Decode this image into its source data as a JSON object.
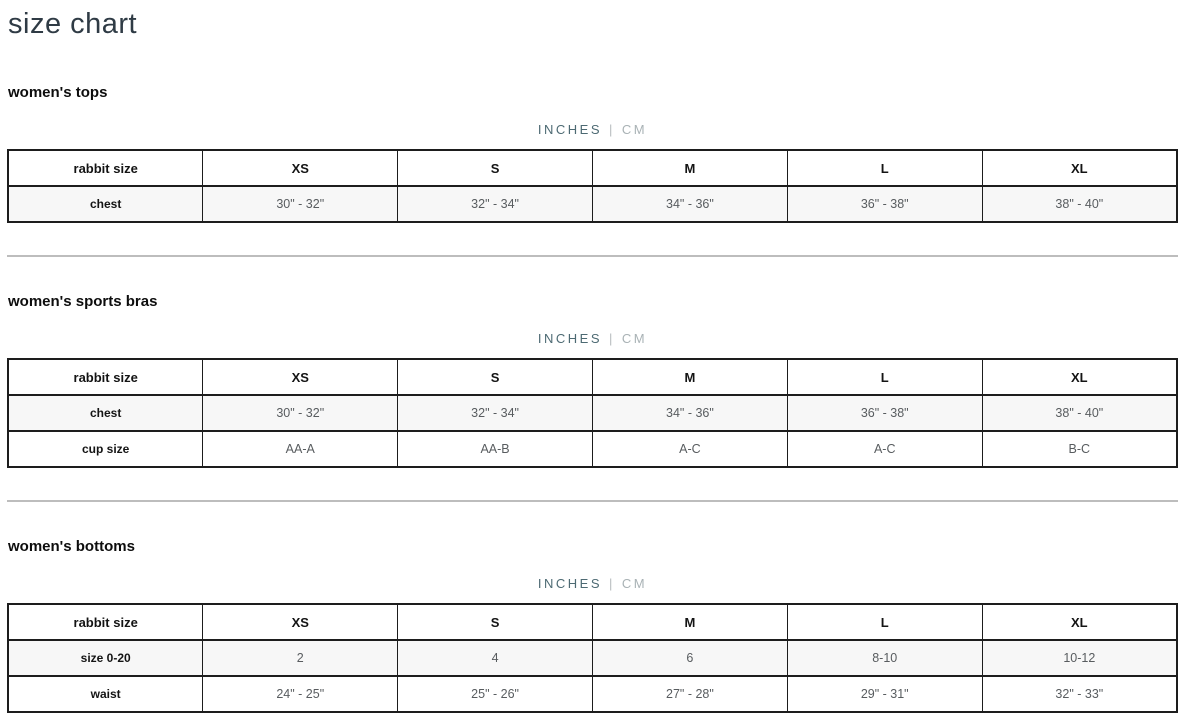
{
  "page": {
    "title": "size chart"
  },
  "unit_toggle": {
    "inches": "INCHES",
    "separator": "|",
    "cm": "CM"
  },
  "colors": {
    "title_text": "#2f3b45",
    "accent_inches": "#4d6a73",
    "muted_cm": "#a9b2b5",
    "table_border": "#1d1d1d",
    "alt_row_bg": "#f7f7f7",
    "cell_text": "#585c5f",
    "divider": "#bdbdbd"
  },
  "sections": [
    {
      "heading": "women's tops",
      "table": {
        "columns": [
          "rabbit size",
          "XS",
          "S",
          "M",
          "L",
          "XL"
        ],
        "rows": [
          {
            "label": "chest",
            "values": [
              "30\" - 32\"",
              "32\" - 34\"",
              "34\" - 36\"",
              "36\" - 38\"",
              "38\" - 40\""
            ]
          }
        ]
      }
    },
    {
      "heading": "women's sports bras",
      "table": {
        "columns": [
          "rabbit size",
          "XS",
          "S",
          "M",
          "L",
          "XL"
        ],
        "rows": [
          {
            "label": "chest",
            "values": [
              "30\" - 32\"",
              "32\" - 34\"",
              "34\" - 36\"",
              "36\" - 38\"",
              "38\" - 40\""
            ]
          },
          {
            "label": "cup size",
            "values": [
              "AA-A",
              "AA-B",
              "A-C",
              "A-C",
              "B-C"
            ]
          }
        ]
      }
    },
    {
      "heading": "women's bottoms",
      "table": {
        "columns": [
          "rabbit size",
          "XS",
          "S",
          "M",
          "L",
          "XL"
        ],
        "rows": [
          {
            "label": "size 0-20",
            "values": [
              "2",
              "4",
              "6",
              "8-10",
              "10-12"
            ]
          },
          {
            "label": "waist",
            "values": [
              "24\" - 25\"",
              "25\" - 26\"",
              "27\" - 28\"",
              "29\" - 31\"",
              "32\" - 33\""
            ]
          }
        ]
      }
    }
  ]
}
